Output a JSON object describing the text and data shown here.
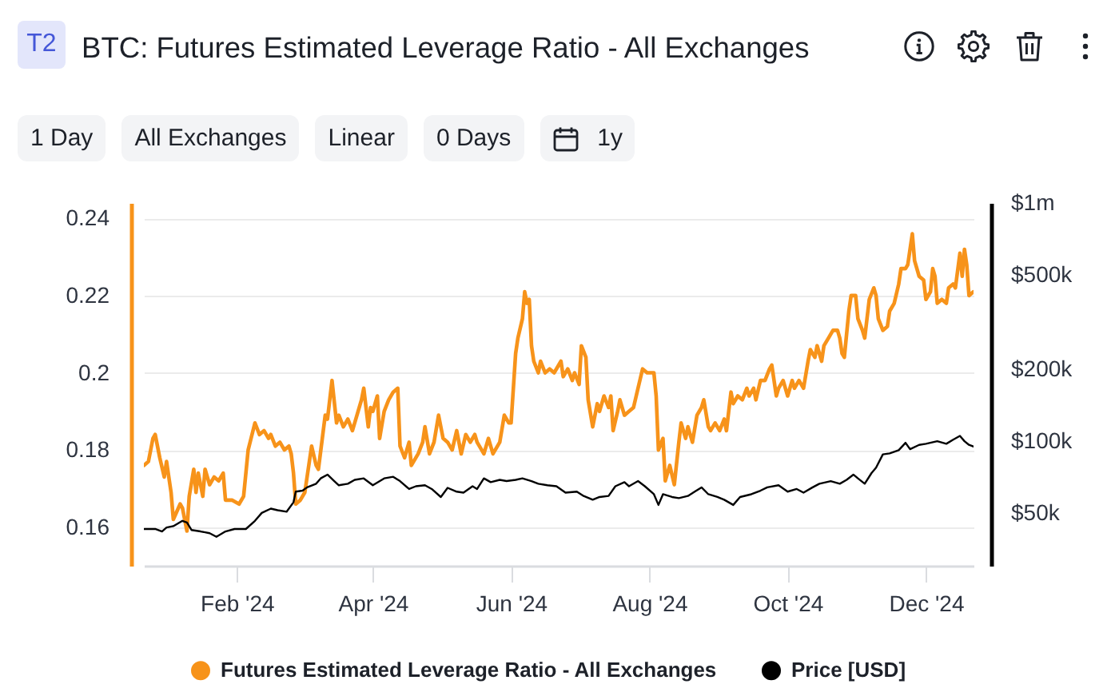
{
  "chart_data": {
    "type": "line",
    "title": "BTC: Futures Estimated Leverage Ratio - All Exchanges",
    "annotations": [
      "T2",
      "1 Day",
      "All Exchanges",
      "Linear",
      "0 Days",
      "1y"
    ],
    "xlim": [
      "2023-12-22",
      "2024-12-22"
    ],
    "xticks": [
      {
        "value": "2024-02-01",
        "label": "Feb '24"
      },
      {
        "value": "2024-04-01",
        "label": "Apr '24"
      },
      {
        "value": "2024-06-01",
        "label": "Jun '24"
      },
      {
        "value": "2024-08-01",
        "label": "Aug '24"
      },
      {
        "value": "2024-10-01",
        "label": "Oct '24"
      },
      {
        "value": "2024-12-01",
        "label": "Dec '24"
      }
    ],
    "ylim": [
      0.15,
      0.244
    ],
    "yticks": [
      0.16,
      0.18,
      0.2,
      0.22,
      0.24
    ],
    "y2lim": [
      30000,
      1000000
    ],
    "y2ticks": [
      {
        "value": 50000,
        "label": "$50k"
      },
      {
        "value": 100000,
        "label": "$100k"
      },
      {
        "value": 200000,
        "label": "$200k"
      },
      {
        "value": 500000,
        "label": "$500k"
      },
      {
        "value": 1000000,
        "label": "$1m"
      }
    ],
    "log": "y2",
    "grid": "y",
    "legend": "bottom",
    "series": [
      {
        "name": "Futures Estimated Leverage Ratio - All Exchanges",
        "color": "#f7931a",
        "x": [
          "2023-12-22",
          "2023-12-24",
          "2023-12-26",
          "2023-12-27",
          "2023-12-29",
          "2023-12-31",
          "2024-01-01",
          "2024-01-03",
          "2024-01-04",
          "2024-01-07",
          "2024-01-08",
          "2024-01-10",
          "2024-01-11",
          "2024-01-13",
          "2024-01-14",
          "2024-01-15",
          "2024-01-17",
          "2024-01-18",
          "2024-01-20",
          "2024-01-22",
          "2024-01-24",
          "2024-01-26",
          "2024-01-27",
          "2024-01-30",
          "2024-02-02",
          "2024-02-04",
          "2024-02-06",
          "2024-02-09",
          "2024-02-11",
          "2024-02-13",
          "2024-02-15",
          "2024-02-16",
          "2024-02-18",
          "2024-02-20",
          "2024-02-22",
          "2024-02-24",
          "2024-02-25",
          "2024-02-26",
          "2024-02-27",
          "2024-02-29",
          "2024-03-02",
          "2024-03-04",
          "2024-03-05",
          "2024-03-07",
          "2024-03-08",
          "2024-03-11",
          "2024-03-12",
          "2024-03-14",
          "2024-03-16",
          "2024-03-17",
          "2024-03-19",
          "2024-03-21",
          "2024-03-23",
          "2024-03-25",
          "2024-03-27",
          "2024-03-28",
          "2024-03-30",
          "2024-03-31",
          "2024-04-01",
          "2024-04-03",
          "2024-04-04",
          "2024-04-06",
          "2024-04-08",
          "2024-04-10",
          "2024-04-12",
          "2024-04-13",
          "2024-04-15",
          "2024-04-17",
          "2024-04-18",
          "2024-04-21",
          "2024-04-23",
          "2024-04-24",
          "2024-04-26",
          "2024-04-28",
          "2024-04-30",
          "2024-05-02",
          "2024-05-04",
          "2024-05-06",
          "2024-05-08",
          "2024-05-10",
          "2024-05-12",
          "2024-05-14",
          "2024-05-16",
          "2024-05-17",
          "2024-05-20",
          "2024-05-22",
          "2024-05-24",
          "2024-05-27",
          "2024-05-29",
          "2024-05-31",
          "2024-06-01",
          "2024-06-03",
          "2024-06-04",
          "2024-06-06",
          "2024-06-07",
          "2024-06-08",
          "2024-06-09",
          "2024-06-10",
          "2024-06-11",
          "2024-06-13",
          "2024-06-14",
          "2024-06-16",
          "2024-06-18",
          "2024-06-20",
          "2024-06-23",
          "2024-06-24",
          "2024-06-26",
          "2024-06-28",
          "2024-06-29",
          "2024-07-01",
          "2024-07-02",
          "2024-07-04",
          "2024-07-05",
          "2024-07-07",
          "2024-07-09",
          "2024-07-10",
          "2024-07-12",
          "2024-07-14",
          "2024-07-15",
          "2024-07-16",
          "2024-07-18",
          "2024-07-19",
          "2024-07-21",
          "2024-07-23",
          "2024-07-25",
          "2024-07-27",
          "2024-07-29",
          "2024-07-31",
          "2024-08-03",
          "2024-08-04",
          "2024-08-05",
          "2024-08-07",
          "2024-08-08",
          "2024-08-10",
          "2024-08-12",
          "2024-08-14",
          "2024-08-15",
          "2024-08-17",
          "2024-08-18",
          "2024-08-20",
          "2024-08-22",
          "2024-08-24",
          "2024-08-25",
          "2024-08-27",
          "2024-08-28",
          "2024-08-30",
          "2024-09-01",
          "2024-09-03",
          "2024-09-04",
          "2024-09-06",
          "2024-09-07",
          "2024-09-09",
          "2024-09-11",
          "2024-09-13",
          "2024-09-14",
          "2024-09-16",
          "2024-09-17",
          "2024-09-19",
          "2024-09-21",
          "2024-09-23",
          "2024-09-24",
          "2024-09-26",
          "2024-09-27",
          "2024-09-29",
          "2024-10-01",
          "2024-10-03",
          "2024-10-04",
          "2024-10-06",
          "2024-10-08",
          "2024-10-10",
          "2024-10-11",
          "2024-10-13",
          "2024-10-14",
          "2024-10-16",
          "2024-10-17",
          "2024-10-19",
          "2024-10-21",
          "2024-10-23",
          "2024-10-24",
          "2024-10-25",
          "2024-10-26",
          "2024-10-28",
          "2024-10-29",
          "2024-10-31",
          "2024-11-01",
          "2024-11-03",
          "2024-11-04",
          "2024-11-06",
          "2024-11-08",
          "2024-11-09",
          "2024-11-10",
          "2024-11-12",
          "2024-11-14",
          "2024-11-15",
          "2024-11-17",
          "2024-11-19",
          "2024-11-20",
          "2024-11-22",
          "2024-11-23",
          "2024-11-24",
          "2024-11-25",
          "2024-11-26",
          "2024-11-28",
          "2024-11-30",
          "2024-12-01",
          "2024-12-03",
          "2024-12-04",
          "2024-12-05",
          "2024-12-06",
          "2024-12-08",
          "2024-12-10",
          "2024-12-11",
          "2024-12-13",
          "2024-12-14",
          "2024-12-16",
          "2024-12-17",
          "2024-12-18",
          "2024-12-19",
          "2024-12-20",
          "2024-12-22"
        ],
        "values": [
          0.176,
          0.177,
          0.183,
          0.184,
          0.178,
          0.173,
          0.177,
          0.169,
          0.162,
          0.166,
          0.165,
          0.159,
          0.168,
          0.175,
          0.169,
          0.174,
          0.168,
          0.175,
          0.171,
          0.173,
          0.172,
          0.174,
          0.167,
          0.167,
          0.166,
          0.168,
          0.18,
          0.187,
          0.184,
          0.185,
          0.183,
          0.184,
          0.181,
          0.182,
          0.18,
          0.181,
          0.179,
          0.174,
          0.166,
          0.167,
          0.169,
          0.177,
          0.181,
          0.176,
          0.175,
          0.189,
          0.188,
          0.198,
          0.187,
          0.189,
          0.186,
          0.188,
          0.185,
          0.189,
          0.193,
          0.196,
          0.186,
          0.191,
          0.19,
          0.194,
          0.183,
          0.19,
          0.193,
          0.195,
          0.196,
          0.181,
          0.178,
          0.182,
          0.176,
          0.179,
          0.182,
          0.186,
          0.179,
          0.182,
          0.189,
          0.183,
          0.182,
          0.18,
          0.185,
          0.179,
          0.184,
          0.182,
          0.184,
          0.182,
          0.179,
          0.183,
          0.179,
          0.182,
          0.189,
          0.187,
          0.187,
          0.205,
          0.209,
          0.214,
          0.221,
          0.218,
          0.219,
          0.207,
          0.203,
          0.2,
          0.203,
          0.2,
          0.201,
          0.2,
          0.203,
          0.199,
          0.201,
          0.198,
          0.2,
          0.197,
          0.207,
          0.204,
          0.193,
          0.186,
          0.192,
          0.19,
          0.194,
          0.191,
          0.194,
          0.185,
          0.19,
          0.193,
          0.189,
          0.19,
          0.191,
          0.196,
          0.201,
          0.2,
          0.2,
          0.194,
          0.18,
          0.183,
          0.172,
          0.176,
          0.171,
          0.182,
          0.187,
          0.183,
          0.186,
          0.182,
          0.189,
          0.191,
          0.193,
          0.186,
          0.185,
          0.187,
          0.185,
          0.188,
          0.185,
          0.195,
          0.192,
          0.194,
          0.193,
          0.196,
          0.194,
          0.196,
          0.193,
          0.198,
          0.198,
          0.201,
          0.202,
          0.194,
          0.196,
          0.198,
          0.194,
          0.198,
          0.196,
          0.198,
          0.196,
          0.203,
          0.206,
          0.204,
          0.207,
          0.203,
          0.207,
          0.209,
          0.211,
          0.211,
          0.209,
          0.205,
          0.204,
          0.216,
          0.22,
          0.22,
          0.214,
          0.211,
          0.209,
          0.219,
          0.222,
          0.22,
          0.214,
          0.211,
          0.212,
          0.216,
          0.218,
          0.223,
          0.227,
          0.227,
          0.228,
          0.232,
          0.236,
          0.229,
          0.225,
          0.224,
          0.219,
          0.221,
          0.227,
          0.225,
          0.218,
          0.219,
          0.218,
          0.222,
          0.223,
          0.222,
          0.231,
          0.225,
          0.232,
          0.228,
          0.22,
          0.221
        ]
      },
      {
        "name": "Price [USD]",
        "color": "#000000",
        "axis": "y2",
        "x": [
          "2023-12-22",
          "2023-12-27",
          "2023-12-30",
          "2024-01-01",
          "2024-01-04",
          "2024-01-08",
          "2024-01-10",
          "2024-01-12",
          "2024-01-16",
          "2024-01-20",
          "2024-01-23",
          "2024-01-27",
          "2024-01-31",
          "2024-02-05",
          "2024-02-09",
          "2024-02-12",
          "2024-02-16",
          "2024-02-19",
          "2024-02-23",
          "2024-02-26",
          "2024-02-27",
          "2024-03-01",
          "2024-03-03",
          "2024-03-07",
          "2024-03-09",
          "2024-03-12",
          "2024-03-15",
          "2024-03-17",
          "2024-03-21",
          "2024-03-24",
          "2024-03-28",
          "2024-04-01",
          "2024-04-06",
          "2024-04-10",
          "2024-04-13",
          "2024-04-17",
          "2024-04-20",
          "2024-04-24",
          "2024-04-27",
          "2024-05-01",
          "2024-05-04",
          "2024-05-08",
          "2024-05-11",
          "2024-05-15",
          "2024-05-17",
          "2024-05-20",
          "2024-05-23",
          "2024-05-27",
          "2024-05-30",
          "2024-06-03",
          "2024-06-06",
          "2024-06-10",
          "2024-06-13",
          "2024-06-17",
          "2024-06-21",
          "2024-06-25",
          "2024-06-30",
          "2024-07-03",
          "2024-07-07",
          "2024-07-10",
          "2024-07-14",
          "2024-07-17",
          "2024-07-21",
          "2024-07-23",
          "2024-07-27",
          "2024-07-30",
          "2024-08-03",
          "2024-08-05",
          "2024-08-07",
          "2024-08-11",
          "2024-08-14",
          "2024-08-18",
          "2024-08-21",
          "2024-08-24",
          "2024-08-27",
          "2024-08-31",
          "2024-09-03",
          "2024-09-07",
          "2024-09-10",
          "2024-09-15",
          "2024-09-19",
          "2024-09-22",
          "2024-09-27",
          "2024-10-01",
          "2024-10-05",
          "2024-10-08",
          "2024-10-12",
          "2024-10-15",
          "2024-10-20",
          "2024-10-24",
          "2024-10-27",
          "2024-10-30",
          "2024-11-01",
          "2024-11-04",
          "2024-11-07",
          "2024-11-09",
          "2024-11-12",
          "2024-11-15",
          "2024-11-19",
          "2024-11-22",
          "2024-11-24",
          "2024-11-28",
          "2024-12-01",
          "2024-12-06",
          "2024-12-10",
          "2024-12-13",
          "2024-12-16",
          "2024-12-18",
          "2024-12-20",
          "2024-12-22"
        ],
        "values": [
          42800,
          42800,
          41800,
          43400,
          44000,
          46300,
          45600,
          42400,
          41800,
          41100,
          39700,
          41800,
          42800,
          42800,
          46300,
          50000,
          52100,
          51300,
          50600,
          55400,
          61400,
          62000,
          64000,
          66300,
          69800,
          72400,
          68000,
          65300,
          66300,
          68800,
          69800,
          65300,
          69800,
          70900,
          68000,
          63000,
          64700,
          65300,
          63000,
          58300,
          63700,
          61400,
          60800,
          64700,
          63000,
          69800,
          67300,
          68800,
          68000,
          68800,
          69800,
          68000,
          66300,
          65300,
          64700,
          60800,
          61400,
          58900,
          56800,
          58300,
          58900,
          64700,
          67300,
          64700,
          68000,
          64700,
          59900,
          54000,
          59900,
          58300,
          57700,
          58900,
          61400,
          64000,
          59900,
          58300,
          56800,
          54000,
          58300,
          59900,
          62000,
          64000,
          65300,
          61400,
          63000,
          60800,
          64000,
          66300,
          68000,
          66300,
          68800,
          72400,
          69800,
          66300,
          73500,
          77400,
          88000,
          88900,
          91700,
          98500,
          92600,
          96500,
          97500,
          100000,
          97500,
          101500,
          105200,
          100000,
          96500,
          95000
        ]
      }
    ]
  }
}
